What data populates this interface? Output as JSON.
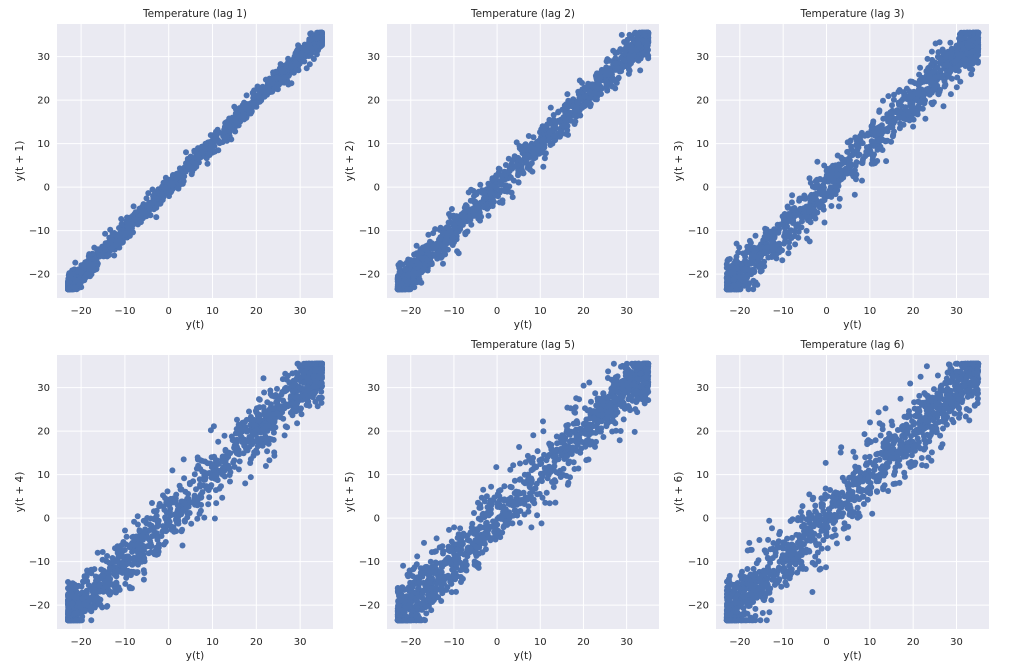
{
  "figure": {
    "marker_color": "#4c72b0",
    "background_color": "#eaeaf2",
    "grid_color": "#ffffff"
  },
  "chart_data": [
    {
      "type": "scatter",
      "title": "Temperature (lag 1)",
      "xlabel": "y(t)",
      "ylabel": "y(t + 1)",
      "lag": 1,
      "xlim": [
        -25.5,
        37.5
      ],
      "ylim": [
        -25.5,
        37.5
      ],
      "xticks": [
        -20,
        -10,
        0,
        10,
        20,
        30
      ],
      "yticks": [
        -20,
        -10,
        0,
        10,
        20,
        30
      ],
      "x_range": [
        -23,
        35
      ],
      "y_range": [
        -23,
        35
      ],
      "spread": 1.2,
      "grid": true
    },
    {
      "type": "scatter",
      "title": "Temperature (lag 2)",
      "xlabel": "y(t)",
      "ylabel": "y(t + 2)",
      "lag": 2,
      "xlim": [
        -25.5,
        37.5
      ],
      "ylim": [
        -25.5,
        37.5
      ],
      "xticks": [
        -20,
        -10,
        0,
        10,
        20,
        30
      ],
      "yticks": [
        -20,
        -10,
        0,
        10,
        20,
        30
      ],
      "x_range": [
        -23,
        35
      ],
      "y_range": [
        -23,
        35
      ],
      "spread": 2.0,
      "grid": true
    },
    {
      "type": "scatter",
      "title": "Temperature (lag 3)",
      "xlabel": "y(t)",
      "ylabel": "y(t + 3)",
      "lag": 3,
      "xlim": [
        -25.5,
        37.5
      ],
      "ylim": [
        -25.5,
        37.5
      ],
      "xticks": [
        -20,
        -10,
        0,
        10,
        20,
        30
      ],
      "yticks": [
        -20,
        -10,
        0,
        10,
        20,
        30
      ],
      "x_range": [
        -23,
        35
      ],
      "y_range": [
        -23,
        35
      ],
      "spread": 2.6,
      "grid": true
    },
    {
      "type": "scatter",
      "title": "",
      "xlabel": "y(t)",
      "ylabel": "y(t + 4)",
      "lag": 4,
      "xlim": [
        -25.5,
        37.5
      ],
      "ylim": [
        -25.5,
        37.5
      ],
      "xticks": [
        -20,
        -10,
        0,
        10,
        20,
        30
      ],
      "yticks": [
        -20,
        -10,
        0,
        10,
        20,
        30
      ],
      "x_range": [
        -23,
        35
      ],
      "y_range": [
        -23,
        35
      ],
      "spread": 3.1,
      "grid": true
    },
    {
      "type": "scatter",
      "title": "Temperature (lag 5)",
      "xlabel": "y(t)",
      "ylabel": "y(t + 5)",
      "lag": 5,
      "xlim": [
        -25.5,
        37.5
      ],
      "ylim": [
        -25.5,
        37.5
      ],
      "xticks": [
        -20,
        -10,
        0,
        10,
        20,
        30
      ],
      "yticks": [
        -20,
        -10,
        0,
        10,
        20,
        30
      ],
      "x_range": [
        -23,
        35
      ],
      "y_range": [
        -23,
        35
      ],
      "spread": 3.5,
      "grid": true
    },
    {
      "type": "scatter",
      "title": "Temperature (lag 6)",
      "xlabel": "y(t)",
      "ylabel": "y(t + 6)",
      "lag": 6,
      "xlim": [
        -25.5,
        37.5
      ],
      "ylim": [
        -25.5,
        37.5
      ],
      "xticks": [
        -20,
        -10,
        0,
        10,
        20,
        30
      ],
      "yticks": [
        -20,
        -10,
        0,
        10,
        20,
        30
      ],
      "x_range": [
        -23,
        35
      ],
      "y_range": [
        -23,
        35
      ],
      "spread": 3.8,
      "grid": true
    }
  ]
}
